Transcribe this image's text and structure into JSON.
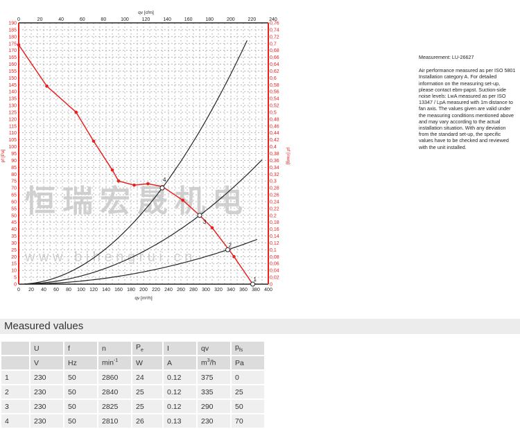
{
  "chart_data": {
    "type": "line",
    "xlabel": "qv [m³/h]",
    "x2label": "qv [cfm]",
    "ylabel": "pf [Pa]",
    "y2label": "pf [inwg]",
    "xlim": [
      0,
      400
    ],
    "ylim": [
      0,
      190
    ],
    "x_ticks": [
      0,
      20,
      40,
      60,
      80,
      100,
      120,
      140,
      160,
      180,
      200,
      220,
      240,
      260,
      280,
      300,
      320,
      340,
      360,
      380,
      400
    ],
    "x2_ticks": [
      0,
      20,
      40,
      60,
      80,
      100,
      120,
      140,
      160,
      180,
      200,
      220,
      240
    ],
    "y_ticks": [
      0,
      5,
      10,
      15,
      20,
      25,
      30,
      35,
      40,
      45,
      50,
      55,
      60,
      65,
      70,
      75,
      80,
      85,
      90,
      95,
      100,
      105,
      110,
      115,
      120,
      125,
      130,
      135,
      140,
      145,
      150,
      155,
      160,
      165,
      170,
      175,
      180,
      185,
      190
    ],
    "y2_ticks": [
      "0",
      "0,02",
      "0,04",
      "0,06",
      "0,08",
      "0,1",
      "0,12",
      "0,14",
      "0,16",
      "0,18",
      "0,2",
      "0,22",
      "0,24",
      "0,26",
      "0,28",
      "0,3",
      "0,32",
      "0,34",
      "0,36",
      "0,38",
      "0,4",
      "0,42",
      "0,44",
      "0,46",
      "0,48",
      "0,5",
      "0,52",
      "0,54",
      "0,56",
      "0,58",
      "0,6",
      "0,62",
      "0,64",
      "0,66",
      "0,68",
      "0,7",
      "0,72",
      "0,74",
      "0,76"
    ],
    "grid": true,
    "fan_curve": {
      "color": "#e8201e",
      "points": [
        [
          0,
          174
        ],
        [
          45,
          144
        ],
        [
          92,
          125
        ],
        [
          120,
          104
        ],
        [
          150,
          83
        ],
        [
          160,
          75
        ],
        [
          185,
          72
        ],
        [
          207,
          73
        ],
        [
          230,
          71
        ],
        [
          263,
          61
        ],
        [
          290,
          50
        ],
        [
          310,
          41
        ],
        [
          337,
          25
        ],
        [
          345,
          20
        ],
        [
          375,
          0
        ]
      ]
    },
    "system_curves": [
      {
        "label": "4",
        "k": 0.001323,
        "x_end": 367
      },
      {
        "label": "3",
        "k": 0.000595,
        "x_end": 390
      },
      {
        "label": "2",
        "k": 0.000223,
        "x_end": 385
      }
    ],
    "operating_points": [
      {
        "label": "1",
        "x": 375,
        "y": 0
      },
      {
        "label": "2",
        "x": 335,
        "y": 25
      },
      {
        "label": "3",
        "x": 290,
        "y": 50
      },
      {
        "label": "4",
        "x": 230,
        "y": 70
      }
    ],
    "colors": {
      "axis_red": "#e8201e",
      "curve": "#222222"
    }
  },
  "watermark": {
    "cn": "恒瑞宏晟机电",
    "url": "w w w . b j h e n g r u i . c n"
  },
  "note": {
    "measurement": "Measurement: LU-26627",
    "text": "Air performance measured as per ISO 5801 Installation category A. For detailed information on the measuring set-up, please contact ebm-papst. Suction-side noise levels: LwA measured as per ISO 13347 / LpA measured with 1m distance to fan axis. The values given are valid under the measuring conditions mentioned above and may vary according to the actual installation situation. With any deviation from the standard set-up, the specific values have to be checked and reviewed with the unit installed."
  },
  "table": {
    "title": "Measured values",
    "headers": [
      "",
      "U",
      "f",
      "n",
      "Pe",
      "I",
      "qv",
      "pfs"
    ],
    "units": [
      "",
      "V",
      "Hz",
      "min-1",
      "W",
      "A",
      "m3/h",
      "Pa"
    ],
    "rows": [
      [
        "1",
        "230",
        "50",
        "2860",
        "24",
        "0.12",
        "375",
        "0"
      ],
      [
        "2",
        "230",
        "50",
        "2840",
        "25",
        "0.12",
        "335",
        "25"
      ],
      [
        "3",
        "230",
        "50",
        "2825",
        "25",
        "0.12",
        "290",
        "50"
      ],
      [
        "4",
        "230",
        "50",
        "2810",
        "26",
        "0.13",
        "230",
        "70"
      ]
    ]
  }
}
